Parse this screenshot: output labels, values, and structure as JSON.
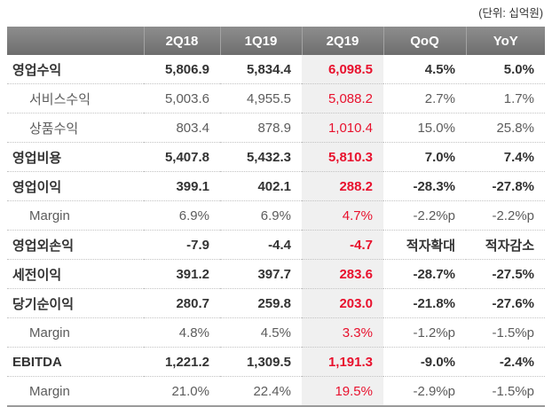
{
  "unit_label": "(단위: 십억원)",
  "table": {
    "columns": [
      "",
      "2Q18",
      "1Q19",
      "2Q19",
      "QoQ",
      "YoY"
    ],
    "highlight_column": "2Q19",
    "rows": [
      {
        "label": "영업수익",
        "style": "main",
        "values": [
          "5,806.9",
          "5,834.4",
          "6,098.5",
          "4.5%",
          "5.0%"
        ]
      },
      {
        "label": "서비스수익",
        "style": "sub",
        "values": [
          "5,003.6",
          "4,955.5",
          "5,088.2",
          "2.7%",
          "1.7%"
        ]
      },
      {
        "label": "상품수익",
        "style": "sub",
        "values": [
          "803.4",
          "878.9",
          "1,010.4",
          "15.0%",
          "25.8%"
        ]
      },
      {
        "label": "영업비용",
        "style": "main",
        "values": [
          "5,407.8",
          "5,432.3",
          "5,810.3",
          "7.0%",
          "7.4%"
        ]
      },
      {
        "label": "영업이익",
        "style": "main",
        "values": [
          "399.1",
          "402.1",
          "288.2",
          "-28.3%",
          "-27.8%"
        ]
      },
      {
        "label": "Margin",
        "style": "sub",
        "values": [
          "6.9%",
          "6.9%",
          "4.7%",
          "-2.2%p",
          "-2.2%p"
        ]
      },
      {
        "label": "영업외손익",
        "style": "main",
        "values": [
          "-7.9",
          "-4.4",
          "-4.7",
          "적자확대",
          "적자감소"
        ]
      },
      {
        "label": "세전이익",
        "style": "main",
        "values": [
          "391.2",
          "397.7",
          "283.6",
          "-28.7%",
          "-27.5%"
        ]
      },
      {
        "label": "당기순이익",
        "style": "main",
        "values": [
          "280.7",
          "259.8",
          "203.0",
          "-21.8%",
          "-27.6%"
        ]
      },
      {
        "label": "Margin",
        "style": "sub",
        "values": [
          "4.8%",
          "4.5%",
          "3.3%",
          "-1.2%p",
          "-1.5%p"
        ]
      },
      {
        "label": "EBITDA",
        "style": "main",
        "values": [
          "1,221.2",
          "1,309.5",
          "1,191.3",
          "-9.0%",
          "-2.4%"
        ]
      },
      {
        "label": "Margin",
        "style": "sub",
        "values": [
          "21.0%",
          "22.4%",
          "19.5%",
          "-2.9%p",
          "-1.5%p"
        ]
      }
    ]
  },
  "colors": {
    "header_bg_top": "#8d8d8d",
    "header_bg_bottom": "#6e6e6e",
    "header_text": "#ffffff",
    "highlight_bg": "#f0f0f0",
    "accent_red": "#e8112d",
    "main_text": "#333333",
    "sub_text": "#5c5c5c"
  }
}
